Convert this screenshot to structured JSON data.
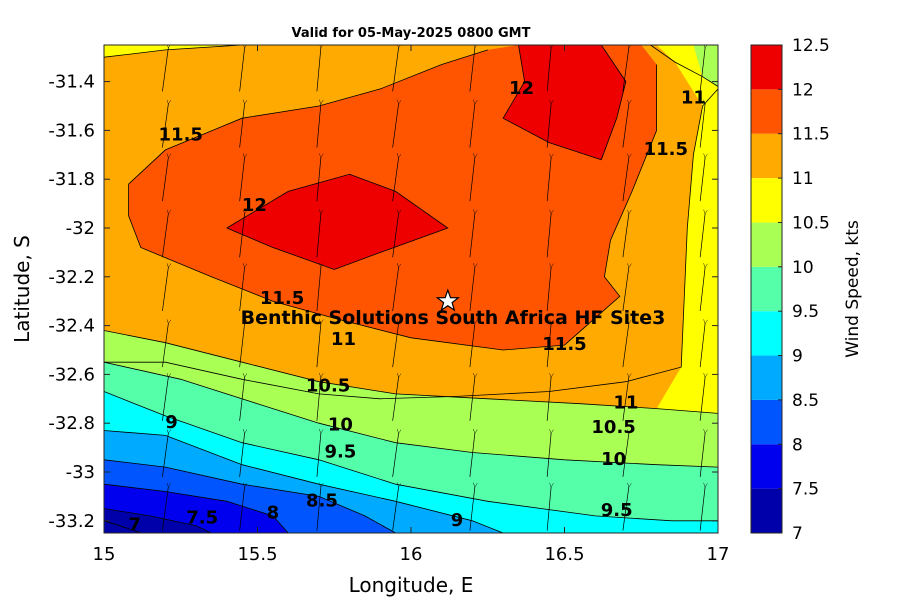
{
  "chart_data": {
    "type": "heatmap",
    "title": "Valid for 05-May-2025 0800 GMT",
    "xlabel": "Longitude, E",
    "ylabel": "Latitude, S",
    "xlim": [
      15,
      17
    ],
    "ylim": [
      -33.25,
      -31.25
    ],
    "xticks": [
      {
        "value": 15,
        "label": "15"
      },
      {
        "value": 15.5,
        "label": "15.5"
      },
      {
        "value": 16,
        "label": "16"
      },
      {
        "value": 16.5,
        "label": "16.5"
      },
      {
        "value": 17,
        "label": "17"
      }
    ],
    "yticks": [
      {
        "value": -31.4,
        "label": "-31.4"
      },
      {
        "value": -31.6,
        "label": "-31.6"
      },
      {
        "value": -31.8,
        "label": "-31.8"
      },
      {
        "value": -32,
        "label": "-32"
      },
      {
        "value": -32.2,
        "label": "-32.2"
      },
      {
        "value": -32.4,
        "label": "-32.4"
      },
      {
        "value": -32.6,
        "label": "-32.6"
      },
      {
        "value": -32.8,
        "label": "-32.8"
      },
      {
        "value": -33,
        "label": "-33"
      },
      {
        "value": -33.2,
        "label": "-33.2"
      }
    ],
    "colorbar": {
      "label": "Wind Speed, kts",
      "levels": [
        7,
        7.5,
        8,
        8.5,
        9,
        9.5,
        10,
        10.5,
        11,
        11.5,
        12,
        12.5
      ],
      "tick_labels": [
        "7",
        "7.5",
        "8",
        "8.5",
        "9",
        "9.5",
        "10",
        "10.5",
        "11",
        "11.5",
        "12",
        "12.5"
      ],
      "colors": [
        "#0000aa",
        "#0000ee",
        "#0055ff",
        "#00aaff",
        "#00ffff",
        "#55ffaa",
        "#aaff55",
        "#ffff00",
        "#ffaa00",
        "#ff5500",
        "#ee0000"
      ]
    },
    "contour_bands": [
      {
        "min": 11.5,
        "color": "#ff5500",
        "points": [
          [
            15.08,
            -31.82
          ],
          [
            15.2,
            -31.68
          ],
          [
            15.45,
            -31.55
          ],
          [
            15.7,
            -31.5
          ],
          [
            15.9,
            -31.43
          ],
          [
            16.1,
            -31.33
          ],
          [
            16.25,
            -31.27
          ],
          [
            16.35,
            -31.25
          ],
          [
            16.75,
            -31.25
          ],
          [
            16.8,
            -31.33
          ],
          [
            16.8,
            -31.6
          ],
          [
            16.72,
            -31.85
          ],
          [
            16.65,
            -32.05
          ],
          [
            16.63,
            -32.2
          ],
          [
            16.68,
            -32.28
          ],
          [
            16.5,
            -32.48
          ],
          [
            16.3,
            -32.5
          ],
          [
            16.0,
            -32.45
          ],
          [
            15.75,
            -32.37
          ],
          [
            15.55,
            -32.3
          ],
          [
            15.35,
            -32.2
          ],
          [
            15.12,
            -32.08
          ],
          [
            15.08,
            -31.95
          ]
        ]
      },
      {
        "min": 12,
        "color": "#ee0000",
        "points": [
          [
            15.4,
            -32.0
          ],
          [
            15.6,
            -31.85
          ],
          [
            15.8,
            -31.78
          ],
          [
            15.95,
            -31.85
          ],
          [
            16.12,
            -32.0
          ],
          [
            15.9,
            -32.1
          ],
          [
            15.75,
            -32.17
          ],
          [
            15.55,
            -32.08
          ]
        ]
      },
      {
        "min": 12,
        "color": "#ee0000",
        "points": [
          [
            16.35,
            -31.25
          ],
          [
            16.62,
            -31.25
          ],
          [
            16.7,
            -31.4
          ],
          [
            16.67,
            -31.55
          ],
          [
            16.62,
            -31.72
          ],
          [
            16.45,
            -31.65
          ],
          [
            16.3,
            -31.55
          ],
          [
            16.37,
            -31.4
          ]
        ]
      }
    ],
    "contour_lines": [
      {
        "level": 11,
        "points": [
          [
            15,
            -31.3
          ],
          [
            15.2,
            -31.27
          ],
          [
            15.45,
            -31.25
          ]
        ],
        "label": "",
        "label_at": null
      },
      {
        "level": 11,
        "points": [
          [
            16.78,
            -31.25
          ],
          [
            16.86,
            -31.32
          ],
          [
            16.95,
            -31.38
          ],
          [
            17,
            -31.42
          ]
        ],
        "label": "11",
        "label_at": [
          16.92,
          -31.47
        ]
      },
      {
        "level": 11.5,
        "points": [
          [
            15,
            -32.55
          ],
          [
            15.2,
            -32.55
          ],
          [
            15.45,
            -32.62
          ],
          [
            15.7,
            -32.68
          ],
          [
            15.9,
            -32.7
          ],
          [
            16.15,
            -32.69
          ],
          [
            16.45,
            -32.67
          ],
          [
            16.7,
            -32.63
          ],
          [
            16.88,
            -32.57
          ],
          [
            16.9,
            -32.0
          ],
          [
            16.92,
            -31.7
          ],
          [
            16.95,
            -31.5
          ],
          [
            17,
            -31.43
          ]
        ],
        "label": "11.5",
        "label_at": [
          16.83,
          -31.68
        ]
      },
      {
        "level": 11.5,
        "points": [
          [
            15.08,
            -31.82
          ],
          [
            15.2,
            -31.68
          ],
          [
            15.45,
            -31.55
          ],
          [
            15.7,
            -31.5
          ],
          [
            15.9,
            -31.43
          ],
          [
            16.1,
            -31.33
          ],
          [
            16.25,
            -31.27
          ]
        ],
        "label": "11.5",
        "label_at": [
          15.25,
          -31.62
        ]
      },
      {
        "level": 11.5,
        "points": [
          [
            16.8,
            -31.33
          ],
          [
            16.8,
            -31.6
          ],
          [
            16.72,
            -31.85
          ],
          [
            16.65,
            -32.05
          ],
          [
            16.63,
            -32.2
          ],
          [
            16.68,
            -32.28
          ],
          [
            16.5,
            -32.48
          ],
          [
            16.3,
            -32.5
          ],
          [
            16.0,
            -32.45
          ],
          [
            15.75,
            -32.37
          ],
          [
            15.55,
            -32.3
          ],
          [
            15.35,
            -32.2
          ],
          [
            15.12,
            -32.08
          ],
          [
            15.08,
            -31.95
          ],
          [
            15.08,
            -31.82
          ]
        ],
        "label": "11.5",
        "label_at": [
          15.58,
          -32.29
        ]
      },
      {
        "level": 12,
        "points": [
          [
            15.4,
            -32.0
          ],
          [
            15.6,
            -31.85
          ],
          [
            15.8,
            -31.78
          ],
          [
            15.95,
            -31.85
          ],
          [
            16.12,
            -32.0
          ],
          [
            15.9,
            -32.1
          ],
          [
            15.75,
            -32.17
          ],
          [
            15.55,
            -32.08
          ],
          [
            15.4,
            -32.0
          ]
        ],
        "label": "12",
        "label_at": [
          15.49,
          -31.91
        ]
      },
      {
        "level": 12,
        "points": [
          [
            16.35,
            -31.25
          ],
          [
            16.37,
            -31.4
          ],
          [
            16.3,
            -31.55
          ],
          [
            16.45,
            -31.65
          ],
          [
            16.62,
            -31.72
          ],
          [
            16.67,
            -31.55
          ],
          [
            16.7,
            -31.4
          ],
          [
            16.62,
            -31.25
          ]
        ],
        "label": "12",
        "label_at": [
          16.36,
          -31.43
        ]
      },
      {
        "level": 10.5,
        "points": [
          [
            15,
            -32.42
          ],
          [
            15.2,
            -32.47
          ],
          [
            15.45,
            -32.55
          ],
          [
            15.7,
            -32.63
          ],
          [
            15.95,
            -32.68
          ],
          [
            16.25,
            -32.7
          ],
          [
            16.55,
            -32.72
          ],
          [
            16.8,
            -32.74
          ],
          [
            17,
            -32.76
          ]
        ],
        "label": "10.5",
        "label_at": [
          15.73,
          -32.65
        ]
      },
      {
        "level": 10,
        "points": [
          [
            15,
            -32.55
          ],
          [
            15.25,
            -32.62
          ],
          [
            15.5,
            -32.72
          ],
          [
            15.7,
            -32.8
          ],
          [
            15.95,
            -32.88
          ],
          [
            16.2,
            -32.92
          ],
          [
            16.5,
            -32.95
          ],
          [
            16.8,
            -32.97
          ],
          [
            17,
            -32.98
          ]
        ],
        "label": "10",
        "label_at": [
          15.77,
          -32.81
        ]
      },
      {
        "level": 9.5,
        "points": [
          [
            15,
            -32.67
          ],
          [
            15.2,
            -32.77
          ],
          [
            15.45,
            -32.88
          ],
          [
            15.7,
            -32.95
          ],
          [
            15.95,
            -33.05
          ],
          [
            16.25,
            -33.12
          ],
          [
            16.6,
            -33.18
          ],
          [
            16.85,
            -33.2
          ],
          [
            17,
            -33.2
          ]
        ],
        "label": "9.5",
        "label_at": [
          15.77,
          -32.92
        ]
      },
      {
        "level": 9,
        "points": [
          [
            15,
            -32.83
          ],
          [
            15.2,
            -32.85
          ],
          [
            15.45,
            -32.97
          ],
          [
            15.7,
            -33.05
          ],
          [
            15.95,
            -33.12
          ],
          [
            16.2,
            -33.2
          ],
          [
            16.3,
            -33.25
          ]
        ],
        "label": "9",
        "label_at": [
          15.22,
          -32.8
        ]
      },
      {
        "level": 8.5,
        "points": [
          [
            15,
            -32.95
          ],
          [
            15.2,
            -32.98
          ],
          [
            15.45,
            -33.05
          ],
          [
            15.7,
            -33.1
          ],
          [
            15.85,
            -33.18
          ],
          [
            15.95,
            -33.25
          ]
        ],
        "label": "8.5",
        "label_at": [
          15.71,
          -33.12
        ]
      },
      {
        "level": 8,
        "points": [
          [
            15,
            -33.05
          ],
          [
            15.2,
            -33.08
          ],
          [
            15.4,
            -33.12
          ],
          [
            15.55,
            -33.18
          ],
          [
            15.6,
            -33.25
          ]
        ],
        "label": "8",
        "label_at": [
          15.55,
          -33.17
        ]
      },
      {
        "level": 7.5,
        "points": [
          [
            15,
            -33.15
          ],
          [
            15.15,
            -33.18
          ],
          [
            15.3,
            -33.22
          ],
          [
            15.35,
            -33.25
          ]
        ],
        "label": "7.5",
        "label_at": [
          15.32,
          -33.19
        ]
      },
      {
        "level": 7,
        "points": [
          [
            15,
            -33.2
          ],
          [
            15.1,
            -33.24
          ],
          [
            15.12,
            -33.25
          ]
        ],
        "label": "7",
        "label_at": [
          15.1,
          -33.22
        ]
      }
    ],
    "extra_labels": [
      {
        "text": "11.5",
        "at": [
          16.5,
          -32.48
        ]
      },
      {
        "text": "11",
        "at": [
          15.78,
          -32.46
        ]
      },
      {
        "text": "11",
        "at": [
          16.7,
          -32.72
        ]
      },
      {
        "text": "10.5",
        "at": [
          16.66,
          -32.82
        ]
      },
      {
        "text": "10",
        "at": [
          16.66,
          -32.95
        ]
      },
      {
        "text": "9.5",
        "at": [
          16.67,
          -33.16
        ]
      },
      {
        "text": "9",
        "at": [
          16.15,
          -33.2
        ]
      }
    ],
    "arrow_grid": {
      "x": [
        15.2,
        15.45,
        15.7,
        15.95,
        16.2,
        16.45,
        16.7,
        16.95
      ],
      "y": [
        -31.35,
        -31.58,
        -31.8,
        -32.03,
        -32.25,
        -32.48,
        -32.7,
        -32.93,
        -33.15
      ]
    },
    "site": {
      "name": "Benthic Solutions South Africa HF Site3",
      "lon": 16.12,
      "lat": -32.3
    }
  }
}
